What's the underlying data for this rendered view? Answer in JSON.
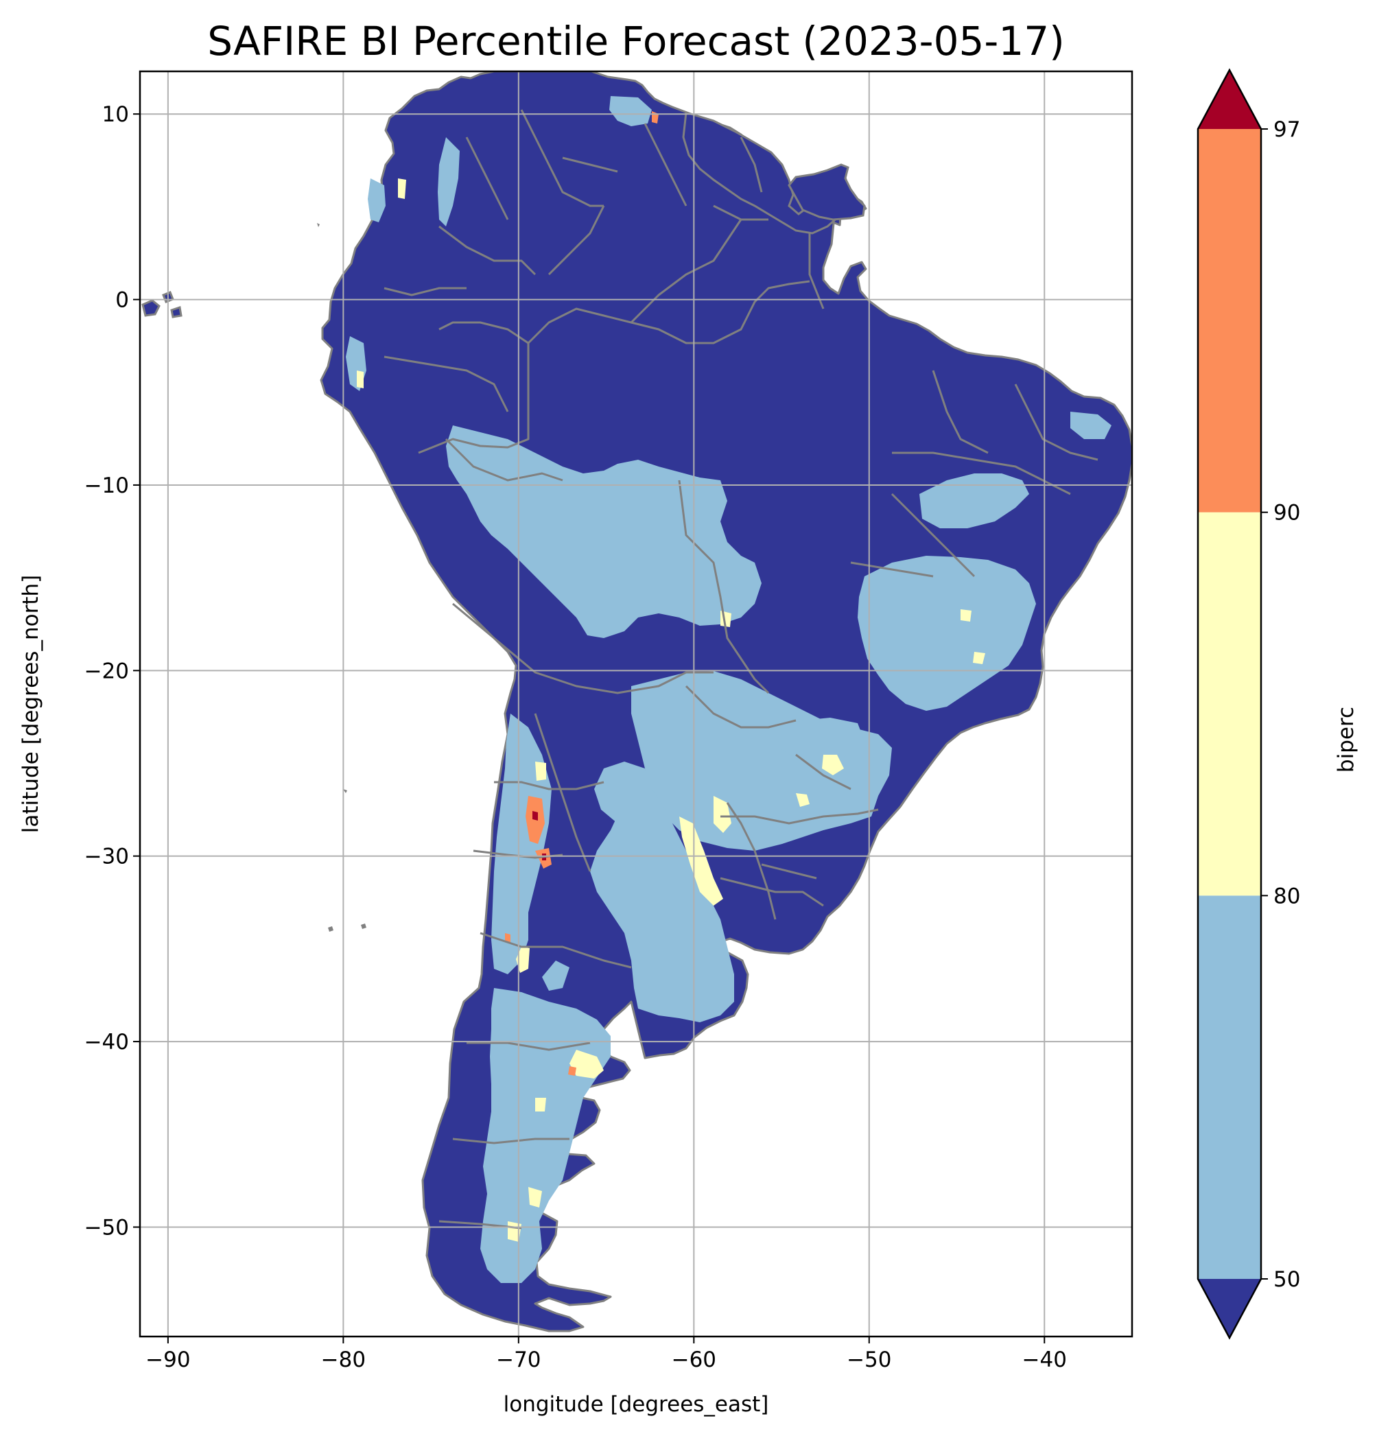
{
  "map": {
    "title": "SAFIRE BI Percentile Forecast (2023-05-17)",
    "xlabel": "longitude [degrees_east]",
    "ylabel": "latitude [degrees_north]",
    "x_range": [
      -91.6,
      -35.0
    ],
    "y_range": [
      -55.9,
      12.3
    ],
    "x_ticks": [
      -90,
      -80,
      -70,
      -60,
      -50,
      -40
    ],
    "x_tick_labels": [
      "−90",
      "−80",
      "−70",
      "−60",
      "−50",
      "−40"
    ],
    "y_ticks": [
      10,
      0,
      -10,
      -20,
      -30,
      -40,
      -50
    ],
    "y_tick_labels": [
      "10",
      "0",
      "−10",
      "−20",
      "−30",
      "−40",
      "−50"
    ],
    "grid": true,
    "region": "South America",
    "border_color": "#808080"
  },
  "colorbar": {
    "label": "biperc",
    "ticks": [
      50,
      80,
      90,
      97
    ],
    "tick_labels": [
      "50",
      "80",
      "90",
      "97"
    ],
    "extend": "both",
    "bins": [
      {
        "range": "<50",
        "color": "#313695"
      },
      {
        "range": "50-80",
        "color": "#91bfdb"
      },
      {
        "range": "80-90",
        "color": "#ffffbf"
      },
      {
        "range": "90-97",
        "color": "#fc8d59"
      },
      {
        "range": ">97",
        "color": "#a50026"
      }
    ]
  }
}
